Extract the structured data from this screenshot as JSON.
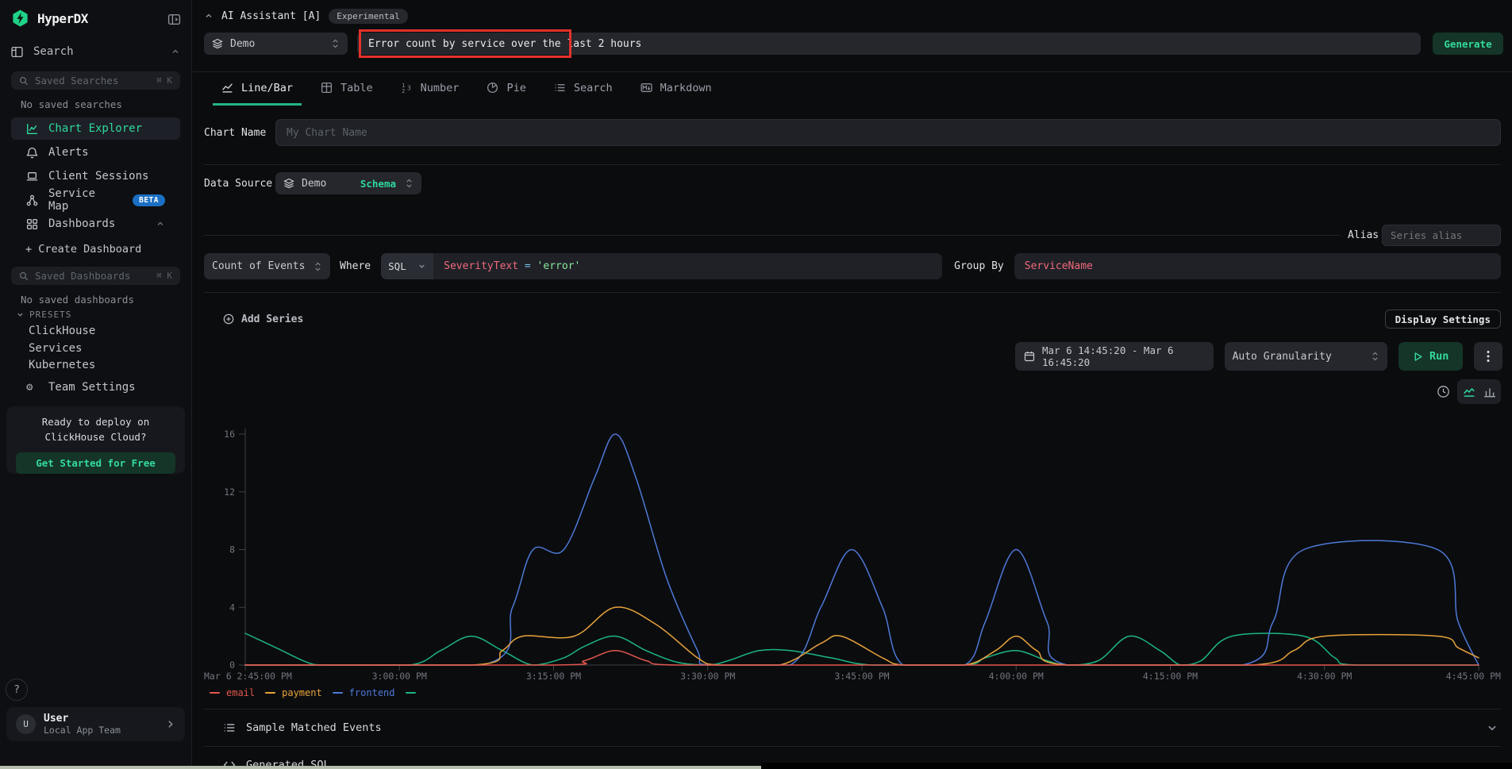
{
  "app": {
    "title": "HyperDX"
  },
  "sidebar": {
    "search_section": "Search",
    "saved_searches_placeholder": "Saved Searches",
    "saved_searches_shortcut": "⌘ K",
    "no_saved_searches": "No saved searches",
    "nav": [
      {
        "label": "Chart Explorer"
      },
      {
        "label": "Alerts"
      },
      {
        "label": "Client Sessions"
      },
      {
        "label": "Service Map",
        "badge": "BETA"
      },
      {
        "label": "Dashboards"
      }
    ],
    "create_dashboard": "+ Create Dashboard",
    "saved_dashboards_placeholder": "Saved Dashboards",
    "saved_dashboards_shortcut": "⌘ K",
    "no_saved_dashboards": "No saved dashboards",
    "presets_label": "PRESETS",
    "presets": [
      "ClickHouse",
      "Services",
      "Kubernetes"
    ],
    "team_settings": "Team Settings",
    "cloud_card": {
      "text": "Ready to deploy on ClickHouse Cloud?",
      "button": "Get Started for Free"
    },
    "help": "?",
    "user": {
      "initial": "U",
      "name": "User",
      "team": "Local App Team"
    }
  },
  "ai_assistant": {
    "title": "AI Assistant [A]",
    "badge": "Experimental",
    "source": "Demo",
    "prompt": "Error count by service over the last 2 hours",
    "generate": "Generate"
  },
  "tabs": [
    {
      "label": "Line/Bar",
      "active": true
    },
    {
      "label": "Table"
    },
    {
      "label": "Number"
    },
    {
      "label": "Pie"
    },
    {
      "label": "Search"
    },
    {
      "label": "Markdown"
    }
  ],
  "chart_form": {
    "name_label": "Chart Name",
    "name_placeholder": "My Chart Name",
    "source_label": "Data Source",
    "source_value": "Demo",
    "source_action": "Schema",
    "alias_label": "Alias",
    "alias_placeholder": "Series alias",
    "aggregation": "Count of Events",
    "where_label": "Where",
    "language": "SQL",
    "where_tokens": {
      "field": "SeverityText",
      "op": "=",
      "value": "'error'"
    },
    "group_by_label": "Group By",
    "group_by_value": "ServiceName",
    "add_series": "Add Series",
    "display_settings": "Display Settings",
    "time_range": "Mar 6 14:45:20 - Mar 6 16:45:20",
    "granularity": "Auto Granularity",
    "run": "Run"
  },
  "chart_data": {
    "type": "line",
    "title": "",
    "x_unit": "minutes after Mar 6 2:45:00 PM",
    "x_range_minutes": [
      0,
      120
    ],
    "x_tick_interval_minutes": 15,
    "x_tick_labels": [
      "Mar 6 2:45:00 PM",
      "3:00:00 PM",
      "3:15:00 PM",
      "3:30:00 PM",
      "3:45:00 PM",
      "4:00:00 PM",
      "4:15:00 PM",
      "4:30:00 PM",
      "4:45:00 PM"
    ],
    "y_ticks": [
      0,
      4,
      8,
      12,
      16
    ],
    "y_range": [
      0,
      16
    ],
    "grid": false,
    "legend_position": "bottom-left",
    "series": [
      {
        "name": "email",
        "color": "#e2574e",
        "points": [
          [
            0,
            0
          ],
          [
            30,
            0
          ],
          [
            33,
            0.3
          ],
          [
            36,
            1
          ],
          [
            39,
            0.3
          ],
          [
            42,
            0
          ],
          [
            60,
            0
          ],
          [
            90,
            0
          ],
          [
            120,
            0
          ]
        ]
      },
      {
        "name": "payment",
        "color": "#e8a33b",
        "points": [
          [
            0,
            0
          ],
          [
            22,
            0
          ],
          [
            25,
            1
          ],
          [
            27,
            2
          ],
          [
            32,
            2
          ],
          [
            36,
            4
          ],
          [
            40,
            2.8
          ],
          [
            44,
            0.5
          ],
          [
            46,
            0
          ],
          [
            52,
            0
          ],
          [
            56,
            1.5
          ],
          [
            58,
            2
          ],
          [
            62,
            0.5
          ],
          [
            64,
            0
          ],
          [
            70,
            0
          ],
          [
            73,
            1
          ],
          [
            75,
            2
          ],
          [
            77,
            1
          ],
          [
            80,
            0
          ],
          [
            98,
            0
          ],
          [
            102,
            1
          ],
          [
            105,
            2
          ],
          [
            116,
            2
          ],
          [
            118,
            1.2
          ],
          [
            120,
            0.5
          ]
        ]
      },
      {
        "name": "frontend",
        "color": "#4e79d9",
        "points": [
          [
            0,
            0
          ],
          [
            23,
            0
          ],
          [
            26,
            4
          ],
          [
            28,
            8
          ],
          [
            31,
            8
          ],
          [
            34,
            13
          ],
          [
            36,
            16
          ],
          [
            38,
            13
          ],
          [
            41,
            6
          ],
          [
            44,
            1
          ],
          [
            45,
            0
          ],
          [
            53,
            0
          ],
          [
            56,
            4
          ],
          [
            59,
            8
          ],
          [
            62,
            4
          ],
          [
            64,
            0
          ],
          [
            70,
            0
          ],
          [
            72,
            3
          ],
          [
            75,
            8
          ],
          [
            78,
            3
          ],
          [
            80,
            0
          ],
          [
            97,
            0
          ],
          [
            100,
            3
          ],
          [
            103,
            8
          ],
          [
            116,
            8
          ],
          [
            118,
            3
          ],
          [
            120,
            0
          ]
        ]
      },
      {
        "name": "",
        "color": "#1cb585",
        "points": [
          [
            0,
            2.2
          ],
          [
            3,
            1.2
          ],
          [
            6,
            0.2
          ],
          [
            8,
            0
          ],
          [
            16,
            0
          ],
          [
            19,
            1
          ],
          [
            22,
            2
          ],
          [
            25,
            1
          ],
          [
            28,
            0
          ],
          [
            31,
            0.5
          ],
          [
            33,
            1.3
          ],
          [
            36,
            2
          ],
          [
            39,
            1
          ],
          [
            42,
            0.2
          ],
          [
            45,
            0
          ],
          [
            47,
            0.3
          ],
          [
            50,
            1
          ],
          [
            53,
            1
          ],
          [
            57,
            0.5
          ],
          [
            61,
            0
          ],
          [
            70,
            0
          ],
          [
            72,
            0.5
          ],
          [
            75,
            1
          ],
          [
            78,
            0.3
          ],
          [
            80,
            0
          ],
          [
            83,
            0.3
          ],
          [
            86,
            2
          ],
          [
            89,
            1
          ],
          [
            91,
            0
          ],
          [
            93,
            0.3
          ],
          [
            96,
            2
          ],
          [
            103,
            2
          ],
          [
            106,
            0.5
          ],
          [
            108,
            0
          ],
          [
            120,
            0
          ]
        ]
      }
    ]
  },
  "sections": [
    {
      "label": "Sample Matched Events"
    },
    {
      "label": "Generated SQL"
    }
  ],
  "colors": {
    "accent_green": "#2fd79c",
    "button_green_bg": "#143528",
    "annotation_red": "#e3322b",
    "beta_badge_blue": "#1b6fc4",
    "axis_text": "#70757d",
    "axis_line": "#3c4047"
  }
}
